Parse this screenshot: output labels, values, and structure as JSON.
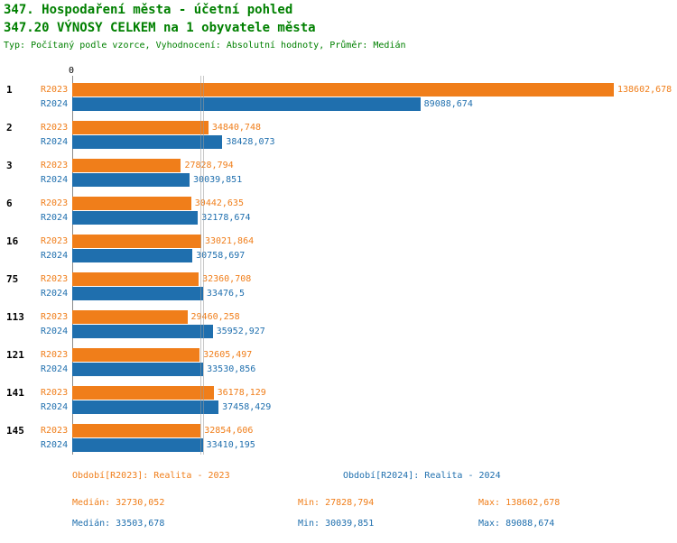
{
  "header": {
    "title": "347. Hospodaření města - účetní pohled",
    "subtitle": "347.20 VÝNOSY CELKEM na 1 obyvatele města",
    "meta": "Typ: Počítaný podle vzorce, Vyhodnocení: Absolutní hodnoty, Průměr: Medián"
  },
  "chart_data": {
    "type": "bar",
    "orientation": "horizontal",
    "axis_zero_label": "0",
    "xlim": [
      0,
      138602.678
    ],
    "grid": "median-lines-only",
    "axis_color": "#8c8c8c",
    "median_line_color": "#9a9a9a",
    "categories": [
      "1",
      "2",
      "3",
      "6",
      "16",
      "75",
      "113",
      "121",
      "141",
      "145"
    ],
    "series": [
      {
        "name": "R2023",
        "color": "#F07E1A",
        "values": [
          138602.678,
          34840.748,
          27828.794,
          30442.635,
          33021.864,
          32360.708,
          29460.258,
          32605.497,
          36178.129,
          32854.606
        ],
        "labels": [
          "138602,678",
          "34840,748",
          "27828,794",
          "30442,635",
          "33021,864",
          "32360,708",
          "29460,258",
          "32605,497",
          "36178,129",
          "32854,606"
        ]
      },
      {
        "name": "R2024",
        "color": "#1F6FAE",
        "values": [
          89088.674,
          38428.073,
          30039.851,
          32178.674,
          30758.697,
          33476.5,
          35952.927,
          33530.856,
          37458.429,
          33410.195
        ],
        "labels": [
          "89088,674",
          "38428,073",
          "30039,851",
          "32178,674",
          "30758,697",
          "33476,5",
          "35952,927",
          "33530,856",
          "37458,429",
          "33410,195"
        ]
      }
    ],
    "median_lines": [
      32730.052,
      33503.678
    ]
  },
  "legend": {
    "r2023": "Období[R2023]: Realita - 2023",
    "r2024": "Období[R2024]: Realita - 2024"
  },
  "stats": {
    "r2023": {
      "median": "Medián: 32730,052",
      "min": "Min: 27828,794",
      "max": "Max: 138602,678"
    },
    "r2024": {
      "median": "Medián: 33503,678",
      "min": "Min: 30039,851",
      "max": "Max: 89088,674"
    }
  }
}
